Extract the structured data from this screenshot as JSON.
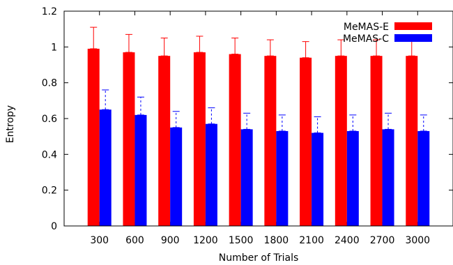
{
  "chart_data": {
    "type": "bar",
    "title": "",
    "xlabel": "Number of Trials",
    "ylabel": "Entropy",
    "ylim": [
      0,
      1.2
    ],
    "yticks": [
      "0",
      "0.2",
      "0.4",
      "0.6",
      "0.8",
      "1",
      "1.2"
    ],
    "grid": false,
    "legend_position": "top-right",
    "categories": [
      "300",
      "600",
      "900",
      "1200",
      "1500",
      "1800",
      "2100",
      "2400",
      "2700",
      "3000"
    ],
    "series": [
      {
        "name": "MeMAS-E",
        "color": "#ff0000",
        "error_style": "solid",
        "values": [
          0.99,
          0.97,
          0.95,
          0.97,
          0.96,
          0.95,
          0.94,
          0.95,
          0.95,
          0.95
        ],
        "errors": [
          0.12,
          0.1,
          0.1,
          0.09,
          0.09,
          0.09,
          0.09,
          0.09,
          0.09,
          0.09
        ]
      },
      {
        "name": "MeMAS-C",
        "color": "#0000ff",
        "error_style": "dashed",
        "values": [
          0.65,
          0.62,
          0.55,
          0.57,
          0.54,
          0.53,
          0.52,
          0.53,
          0.54,
          0.53
        ],
        "errors": [
          0.11,
          0.1,
          0.09,
          0.09,
          0.09,
          0.09,
          0.09,
          0.09,
          0.09,
          0.09
        ]
      }
    ]
  }
}
